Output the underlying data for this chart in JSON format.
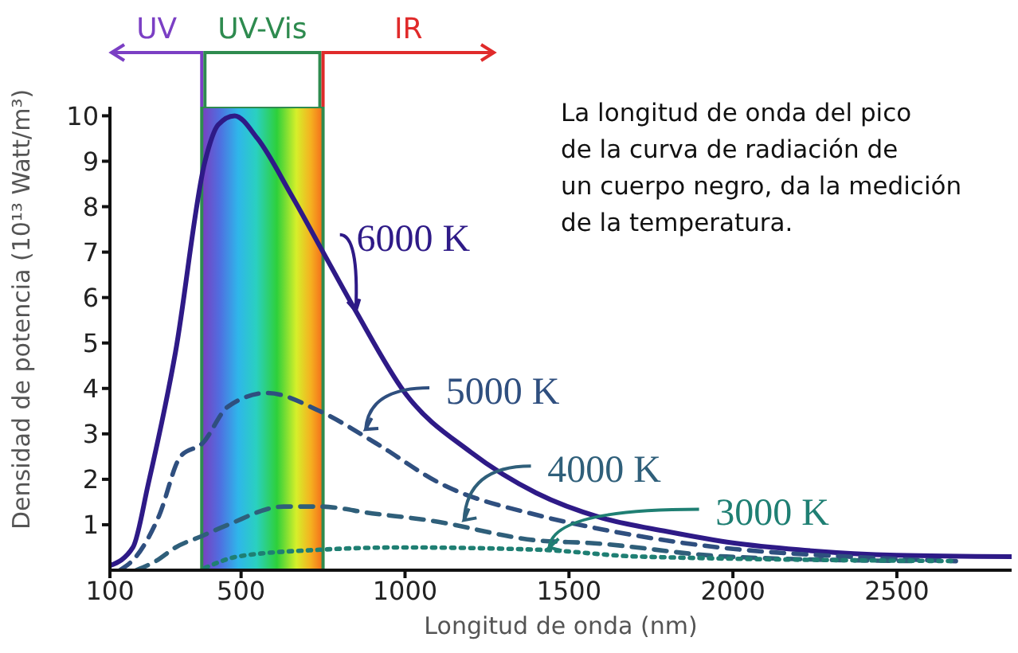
{
  "chart_data": {
    "type": "line",
    "xlabel": "Longitud de onda (nm)",
    "ylabel": "Densidad de potencia (10¹³ Watt/m³)",
    "xlim": [
      100,
      2850
    ],
    "xticks": [
      100,
      500,
      1000,
      1500,
      2000,
      2500
    ],
    "ylim": [
      0,
      10.2
    ],
    "yticks": [
      1,
      2,
      3,
      4,
      5,
      6,
      7,
      8,
      9,
      10
    ],
    "grid": false,
    "legend": false,
    "marker": "none",
    "series": [
      {
        "color": "#2e1a87",
        "line_style": "solid",
        "x": [
          100,
          170,
          217,
          300,
          390,
          430,
          480,
          550,
          650,
          750,
          850,
          1000,
          1200,
          1400,
          1600,
          1800,
          2000,
          2200,
          2500,
          2850
        ],
        "values": [
          0.1,
          0.5,
          1.9,
          4.8,
          9.0,
          9.8,
          10,
          9.5,
          8.3,
          7.0,
          5.7,
          3.9,
          2.6,
          1.7,
          1.15,
          0.85,
          0.6,
          0.45,
          0.33,
          0.3
        ]
      },
      {
        "color": "#2f4f7f",
        "line_style": "dashed",
        "x": [
          130,
          180,
          250,
          315,
          383,
          460,
          580,
          740,
          910,
          1110,
          1410,
          1600,
          1900,
          2400,
          2680
        ],
        "values": [
          0,
          0.3,
          1.2,
          2.5,
          2.8,
          3.6,
          3.9,
          3.5,
          2.8,
          1.9,
          1.2,
          0.9,
          0.55,
          0.28,
          0.2
        ]
      },
      {
        "color": "#2f5f7a",
        "line_style": "dashed",
        "x": [
          180,
          240,
          300,
          380,
          460,
          630,
          740,
          900,
          1070,
          1410,
          1560,
          1980,
          2550
        ],
        "values": [
          0,
          0.2,
          0.5,
          0.75,
          1.0,
          1.4,
          1.4,
          1.25,
          1.1,
          0.65,
          0.6,
          0.3,
          0.2
        ]
      },
      {
        "color": "#1f7f73",
        "line_style": "dotted",
        "x": [
          390,
          490,
          740,
          990,
          1410,
          1710,
          2680
        ],
        "values": [
          0.05,
          0.3,
          0.45,
          0.5,
          0.45,
          0.3,
          0.2
        ]
      }
    ],
    "bands": [
      {
        "axis": "x",
        "from": 380,
        "to": 750,
        "label": "UV-Vis",
        "color": "#2e8b4f"
      }
    ],
    "annotations": [
      "UV",
      "IR",
      {
        "text": "6000 K",
        "x": 850,
        "y": 5.7
      },
      {
        "text": "5000 K",
        "x": 880,
        "y": 3.1
      },
      {
        "text": "4000 K",
        "x": 1180,
        "y": 1.1
      },
      {
        "text": "3000 K",
        "x": 1440,
        "y": 0.5
      },
      "La longitud de onda del pico\nde la curva de radiación de\nun cuerpo negro, da la medición\nde la temperatura."
    ]
  }
}
